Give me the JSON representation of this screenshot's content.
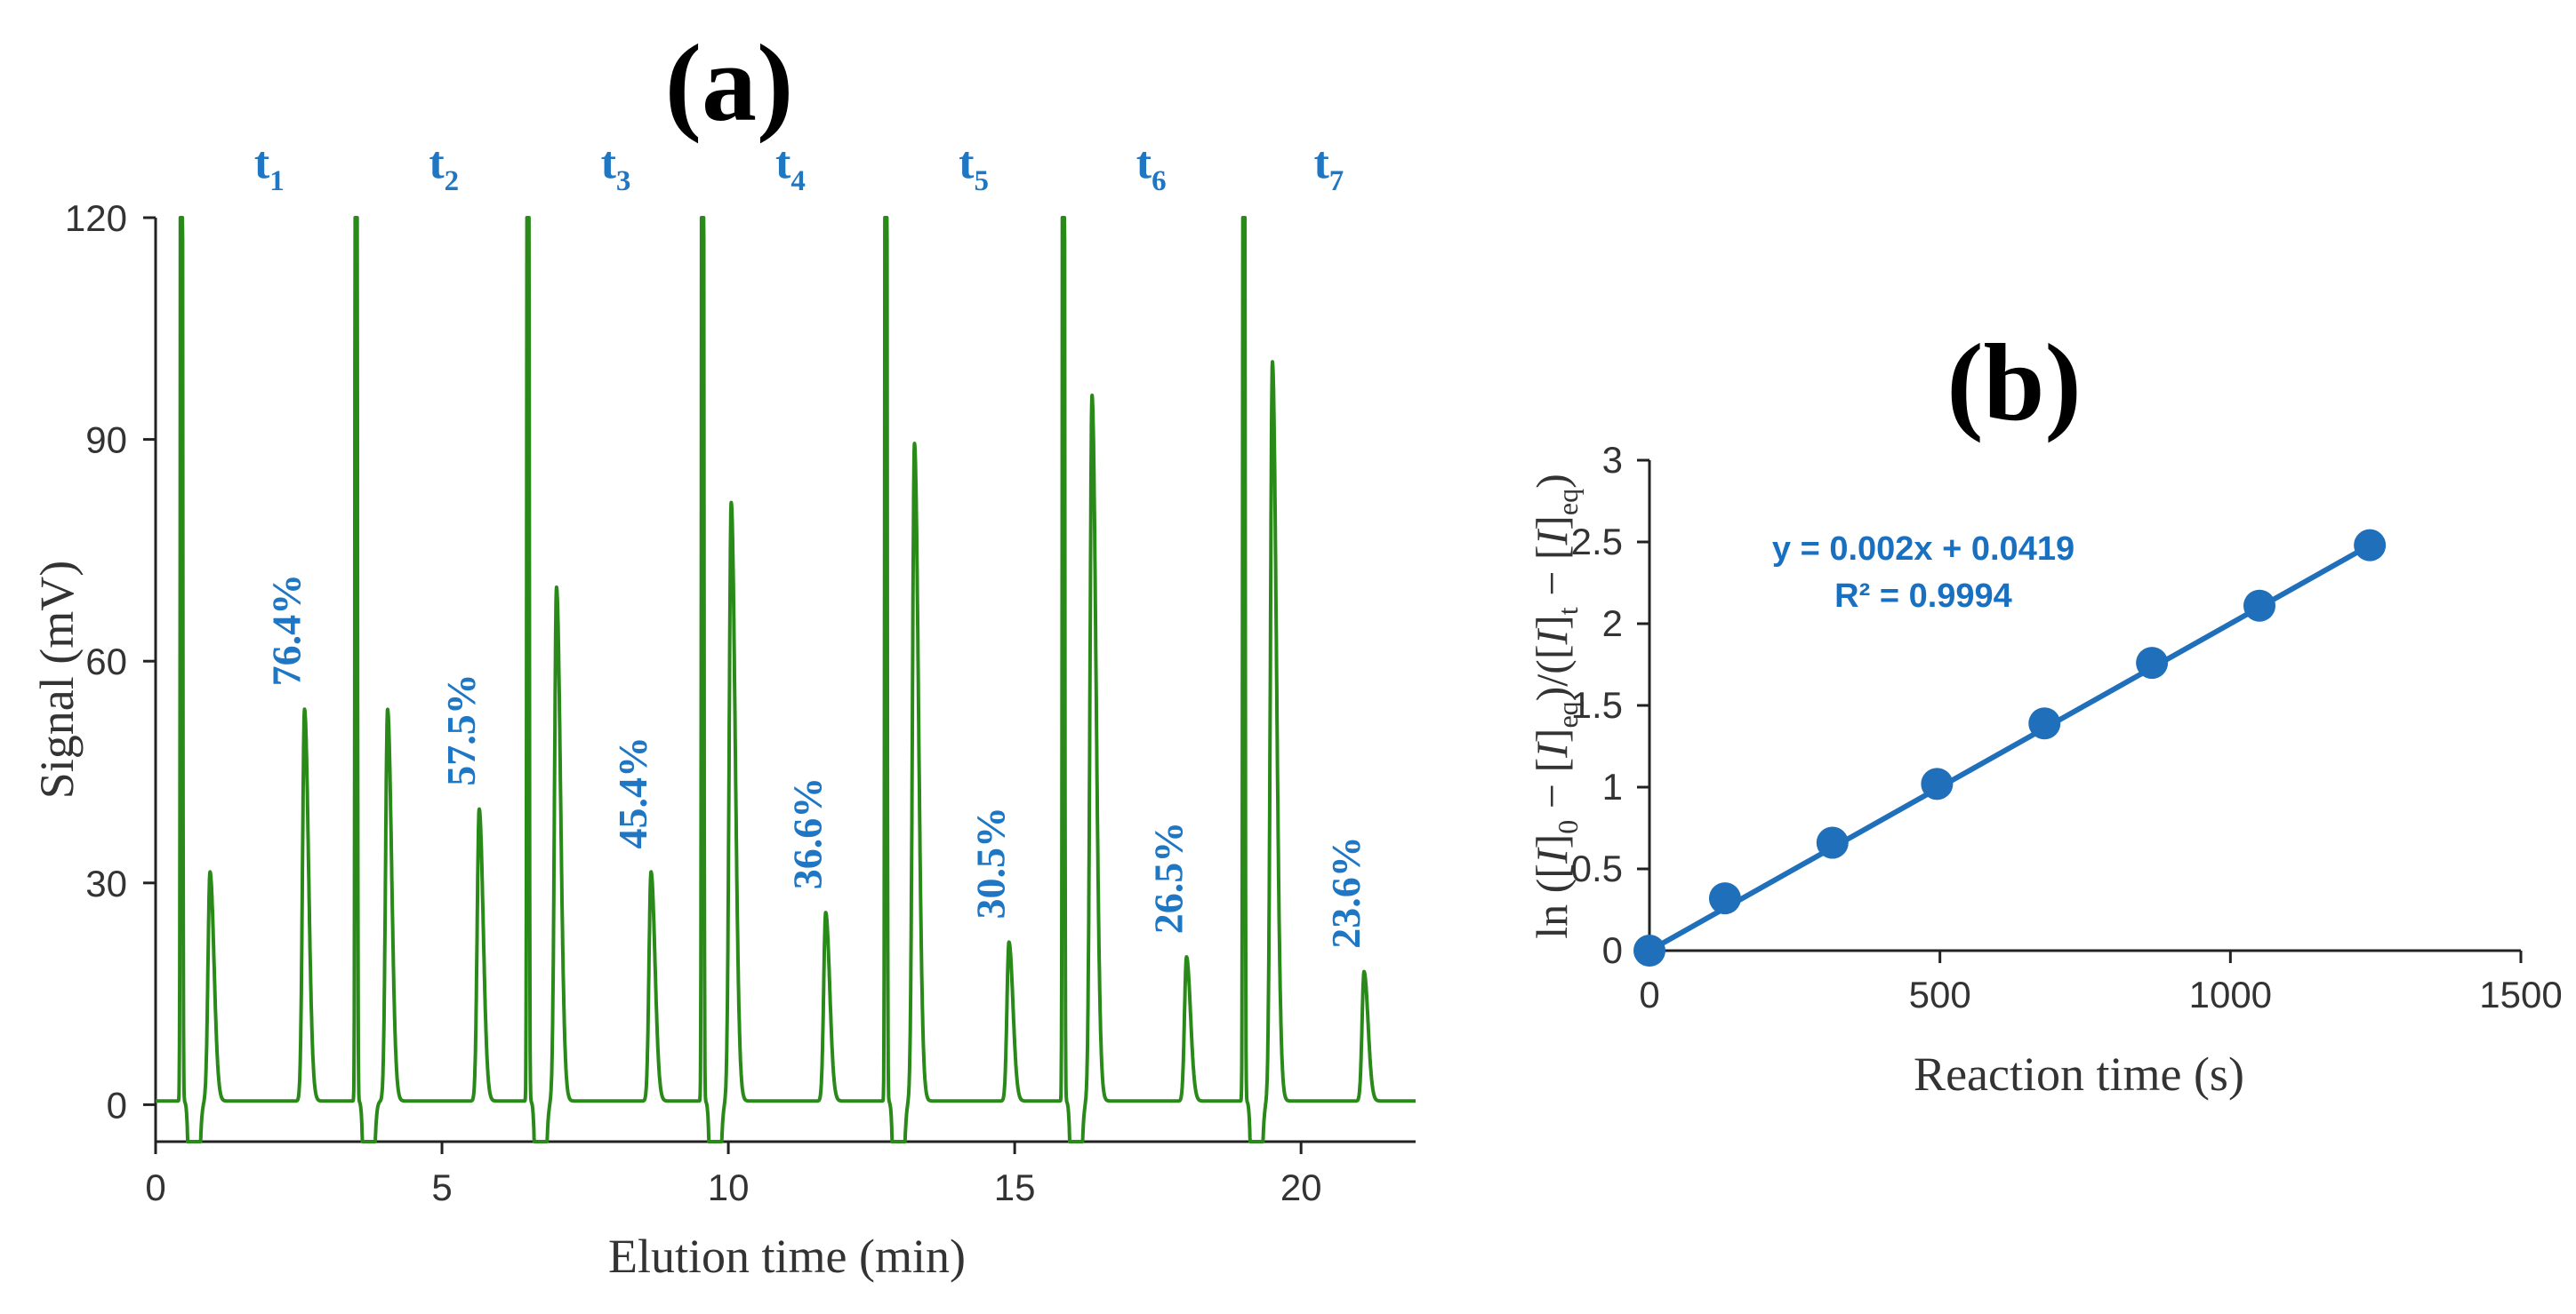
{
  "chart_data": [
    {
      "panel": "(a)",
      "type": "line",
      "title": "",
      "xlabel": "Elution time (min)",
      "ylabel": "Signal (mV)",
      "xlim": [
        0,
        22
      ],
      "ylim": [
        -5,
        120
      ],
      "xticks": [
        "0",
        "5",
        "10",
        "15",
        "20"
      ],
      "yticks": [
        "0",
        "30",
        "60",
        "90",
        "120"
      ],
      "xtick_values": [
        0,
        5,
        10,
        15,
        20
      ],
      "ytick_values": [
        0,
        30,
        60,
        90,
        120
      ],
      "line_color": "#2a8a19",
      "annotation_color": "#1f77c4",
      "cycles": [
        {
          "label": "t",
          "sub": "1",
          "injection": 0.45,
          "peak_I": {
            "x": 0.95,
            "y": 31
          },
          "peak_II": {
            "x": 2.6,
            "y": 53
          },
          "percent": "76.4%"
        },
        {
          "label": "t",
          "sub": "2",
          "injection": 3.5,
          "peak_I": {
            "x": 4.05,
            "y": 53
          },
          "peak_II": {
            "x": 5.65,
            "y": 39.5
          },
          "percent": "57.5%"
        },
        {
          "label": "t",
          "sub": "3",
          "injection": 6.5,
          "peak_I": {
            "x": 7.0,
            "y": 69.5
          },
          "peak_II": {
            "x": 8.65,
            "y": 31
          },
          "percent": "45.4%"
        },
        {
          "label": "t",
          "sub": "4",
          "injection": 9.55,
          "peak_I": {
            "x": 10.05,
            "y": 81
          },
          "peak_II": {
            "x": 11.7,
            "y": 25.5
          },
          "percent": "36.6%"
        },
        {
          "label": "t",
          "sub": "5",
          "injection": 12.75,
          "peak_I": {
            "x": 13.25,
            "y": 89
          },
          "peak_II": {
            "x": 14.9,
            "y": 21.5
          },
          "percent": "30.5%"
        },
        {
          "label": "t",
          "sub": "6",
          "injection": 15.85,
          "peak_I": {
            "x": 16.35,
            "y": 95.5
          },
          "peak_II": {
            "x": 18.0,
            "y": 19.5
          },
          "percent": "26.5%"
        },
        {
          "label": "t",
          "sub": "7",
          "injection": 19.0,
          "peak_I": {
            "x": 19.5,
            "y": 100
          },
          "peak_II": {
            "x": 21.1,
            "y": 17.5
          },
          "percent": "23.6%"
        }
      ]
    },
    {
      "panel": "(b)",
      "type": "scatter",
      "title": "",
      "xlabel": "Reaction time (s)",
      "ylabel": "ln ([I]0 − [I]eq)/([I]t − [I]eq)",
      "ylabel_parts": {
        "ln": "ln (",
        "I": "I",
        "sub0": "0",
        "minus": " − ",
        "subeq": "eq",
        "mid": ")/(",
        "subt": "t",
        "close": ")"
      },
      "xlim": [
        0,
        1500
      ],
      "ylim": [
        0,
        3
      ],
      "xticks": [
        "0",
        "500",
        "1000",
        "1500"
      ],
      "yticks": [
        "0",
        "0.5",
        "1",
        "1.5",
        "2",
        "2.5",
        "3"
      ],
      "xtick_values": [
        0,
        500,
        1000,
        1500
      ],
      "ytick_values": [
        0,
        0.5,
        1,
        1.5,
        2,
        2.5,
        3
      ],
      "marker_color": "#1f6fba",
      "x": [
        0,
        130,
        315,
        495,
        680,
        865,
        1050,
        1240
      ],
      "y": [
        0,
        0.32,
        0.66,
        1.02,
        1.39,
        1.76,
        2.11,
        2.48
      ],
      "fit": {
        "slope": 0.002,
        "intercept": 0.0419,
        "r2": 0.9994
      },
      "equation_text": "y = 0.002x + 0.0419",
      "r2_text": "R² = 0.9994"
    }
  ]
}
